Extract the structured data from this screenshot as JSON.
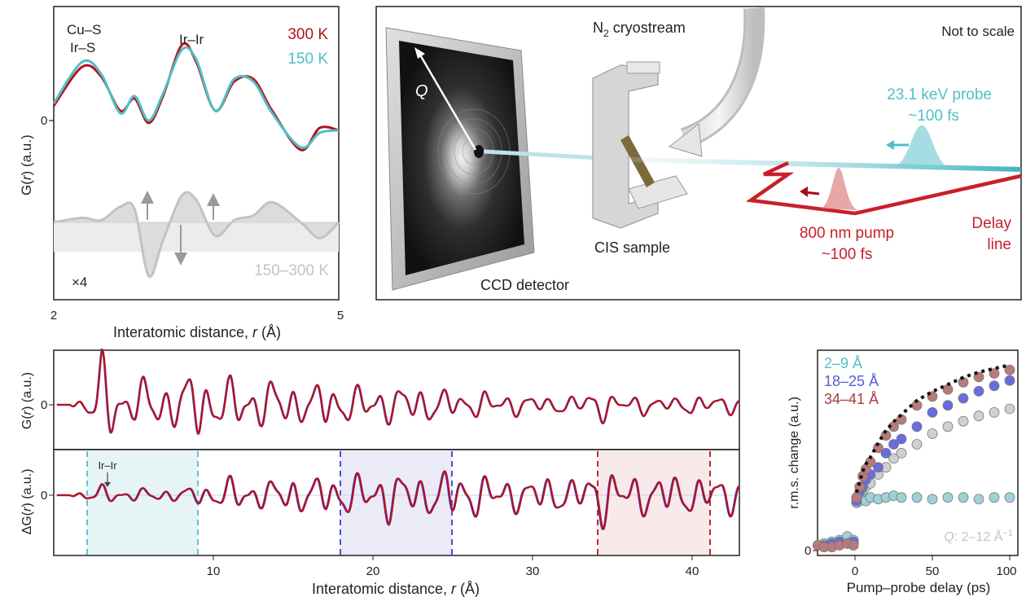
{
  "colors": {
    "red": "#b5121b",
    "cyan": "#4fbfc8",
    "blue": "#3a3ad8",
    "gray": "#b8b8b8",
    "lightgray": "#d3d3d3",
    "dark_red": "#a83a3a",
    "teal_fill": "#e6f4f5",
    "blue_fill": "#ebebf7",
    "red_fill": "#f8eaea",
    "pump_red": "#c8202a"
  },
  "panel_a": {
    "annotations": [
      "Cu–S",
      "Ir–S",
      "Ir–Ir",
      "×4",
      "150–300 K"
    ],
    "zero_tick": "0",
    "ylabel_pre": "G(",
    "ylabel_r": "r",
    "ylabel_post": ") (a.u.)",
    "xlabel_pre": "Interatomic distance, ",
    "xlabel_r": "r",
    "xlabel_post": " (Å)",
    "x_ticks": [
      "2",
      "5"
    ]
  },
  "panel_b": {
    "cryostream_pre": "N",
    "cryostream_sub": "2",
    "cryostream_post": " cryostream",
    "not_to_scale": "Not to scale",
    "probe_line1": "23.1 keV probe",
    "probe_line2": "~100 fs",
    "q_label": "Q",
    "ccd_label": "CCD detector",
    "sample_label": "CIS sample",
    "pump_line1": "800 nm pump",
    "pump_line2": "~100 fs",
    "delay_line1": "Delay",
    "delay_line2": "line"
  },
  "panel_c": {
    "ylabel_top_pre": "G(",
    "ylabel_top_r": "r",
    "ylabel_top_post": ") (a.u.)",
    "ylabel_bot_pre": "ΔG(",
    "ylabel_bot_r": "r",
    "ylabel_bot_post": ") (a.u.)",
    "zero_tick": "0",
    "annotation": "Ir–Ir",
    "xlabel_pre": "Interatomic distance, ",
    "xlabel_r": "r",
    "xlabel_post": " (Å)",
    "x_ticks": [
      "10",
      "20",
      "30",
      "40"
    ]
  },
  "panel_d": {
    "legend": [
      "2–9 Å",
      "18–25 Å",
      "34–41 Å"
    ],
    "q_pre": "Q",
    "q_post": ": 2–12 Å",
    "q_sup": "−1",
    "ylabel": "r.m.s. change (a.u.)",
    "xlabel": "Pump–probe delay (ps)",
    "x_ticks": [
      "0",
      "50",
      "100"
    ],
    "zero_tick": "0"
  },
  "chart_data": [
    {
      "type": "line",
      "series": [
        {
          "name": "300 K",
          "x": [
            2.0,
            2.3,
            2.5,
            2.7,
            2.85,
            3.0,
            3.15,
            3.35,
            3.5,
            3.7,
            3.9,
            4.1,
            4.3,
            4.6,
            4.8,
            5.0
          ],
          "y": [
            0.3,
            1.1,
            0.9,
            0.2,
            0.45,
            -0.05,
            0.5,
            1.55,
            1.2,
            0.2,
            0.8,
            0.85,
            0.2,
            -0.6,
            -0.15,
            -0.2
          ]
        },
        {
          "name": "150 K",
          "x": [
            2.0,
            2.3,
            2.5,
            2.7,
            2.85,
            3.0,
            3.15,
            3.35,
            3.5,
            3.7,
            3.9,
            4.1,
            4.3,
            4.6,
            4.8,
            5.0
          ],
          "y": [
            0.35,
            1.2,
            0.95,
            0.15,
            0.5,
            0.0,
            0.55,
            1.45,
            1.25,
            0.2,
            0.85,
            0.8,
            0.15,
            -0.55,
            -0.25,
            -0.2
          ]
        },
        {
          "name": "150–300 K",
          "x": [
            2.0,
            2.3,
            2.5,
            2.7,
            2.85,
            3.0,
            3.15,
            3.35,
            3.5,
            3.7,
            3.9,
            4.1,
            4.3,
            4.6,
            4.8,
            5.0
          ],
          "y": [
            0.0,
            0.1,
            0.05,
            0.35,
            0.3,
            -1.2,
            -0.4,
            0.6,
            0.5,
            -0.3,
            0.05,
            0.15,
            0.45,
            0.0,
            -0.35,
            0.0
          ]
        }
      ],
      "xlabel": "Interatomic distance, r (Å)",
      "ylabel": "G(r) (a.u.)",
      "xlim": [
        2,
        5
      ]
    },
    {
      "type": "line",
      "series": [
        {
          "name": "G(r)",
          "x": [
            1,
            2,
            3,
            4,
            5,
            6,
            7,
            8,
            9,
            10,
            11,
            12,
            13,
            14,
            15,
            16,
            17,
            18,
            19,
            20,
            21,
            22,
            23,
            24,
            25,
            26,
            27,
            28,
            29,
            30,
            31,
            32,
            33,
            34,
            35,
            36,
            37,
            38,
            39,
            40,
            41,
            42,
            43
          ],
          "y": [
            0,
            0.3,
            1.4,
            0.8,
            0.5,
            0.9,
            0.6,
            0.8,
            1.0,
            0.8,
            0.7,
            0.9,
            0.6,
            0.8,
            0.6,
            0.5,
            0.7,
            0.6,
            0.5,
            0.7,
            0.5,
            0.6,
            0.5,
            0.5,
            0.4,
            0.3,
            0.4,
            0.3,
            0.3,
            0.3,
            0.2,
            0.3,
            0.2,
            0.6,
            0.3,
            0.2,
            0.3,
            0.2,
            0.2,
            0.3,
            0.2,
            0.3,
            0.2
          ]
        },
        {
          "name": "ΔG(r)",
          "x": [
            1,
            2,
            3,
            4,
            5,
            6,
            7,
            8,
            9,
            10,
            11,
            12,
            13,
            14,
            15,
            16,
            17,
            18,
            19,
            20,
            21,
            22,
            23,
            24,
            25,
            26,
            27,
            28,
            29,
            30,
            31,
            32,
            33,
            34,
            35,
            36,
            37,
            38,
            39,
            40,
            41,
            42,
            43
          ],
          "y": [
            0,
            0.2,
            0.3,
            0.2,
            0.2,
            0.2,
            0.2,
            0.2,
            0.3,
            0.4,
            0.5,
            0.6,
            0.4,
            0.5,
            0.6,
            0.5,
            0.6,
            0.7,
            0.6,
            0.7,
            0.8,
            0.7,
            0.6,
            0.7,
            0.8,
            0.7,
            0.6,
            0.6,
            0.5,
            0.5,
            0.6,
            0.5,
            0.5,
            1.0,
            0.8,
            0.6,
            0.6,
            0.7,
            0.6,
            0.6,
            0.5,
            0.6,
            0.5
          ]
        }
      ],
      "regions": [
        [
          2,
          9
        ],
        [
          18,
          25
        ],
        [
          34,
          41
        ]
      ],
      "xlabel": "Interatomic distance, r (Å)",
      "ylabel": "G(r) (a.u.) / ΔG(r) (a.u.)",
      "xlim": [
        0,
        43
      ]
    },
    {
      "type": "scatter",
      "series": [
        {
          "name": "2–9 Å",
          "x": [
            -24,
            -20,
            -15,
            -10,
            -5,
            -1,
            1,
            3,
            5,
            7,
            10,
            15,
            20,
            25,
            30,
            40,
            50,
            60,
            70,
            80,
            90,
            100
          ],
          "y": [
            0.03,
            0.04,
            0.05,
            0.06,
            0.08,
            0.06,
            0.27,
            0.28,
            0.29,
            0.28,
            0.3,
            0.29,
            0.3,
            0.31,
            0.3,
            0.3,
            0.29,
            0.3,
            0.3,
            0.29,
            0.3,
            0.3
          ]
        },
        {
          "name": "18–25 Å",
          "x": [
            -24,
            -20,
            -15,
            -10,
            -5,
            -1,
            1,
            3,
            5,
            7,
            10,
            15,
            20,
            25,
            30,
            40,
            50,
            60,
            70,
            80,
            90,
            100
          ],
          "y": [
            0.03,
            0.03,
            0.04,
            0.05,
            0.04,
            0.05,
            0.28,
            0.33,
            0.36,
            0.4,
            0.43,
            0.47,
            0.55,
            0.6,
            0.63,
            0.7,
            0.78,
            0.82,
            0.86,
            0.9,
            0.93,
            0.96
          ]
        },
        {
          "name": "34–41 Å",
          "x": [
            -24,
            -20,
            -15,
            -10,
            -5,
            -1,
            1,
            3,
            5,
            7,
            10,
            15,
            20,
            25,
            30,
            40,
            50,
            60,
            70,
            80,
            90,
            100
          ],
          "y": [
            0.03,
            0.02,
            0.02,
            0.03,
            0.04,
            0.03,
            0.3,
            0.36,
            0.42,
            0.46,
            0.5,
            0.58,
            0.65,
            0.7,
            0.74,
            0.82,
            0.87,
            0.91,
            0.95,
            0.98,
            1.0,
            1.02
          ]
        },
        {
          "name": "Q: 2–12 Å−1",
          "x": [
            -24,
            -20,
            -15,
            -10,
            -5,
            -1,
            1,
            3,
            5,
            7,
            10,
            15,
            20,
            25,
            30,
            40,
            50,
            60,
            70,
            80,
            90,
            100
          ],
          "y": [
            0.03,
            0.03,
            0.04,
            0.05,
            0.05,
            0.04,
            0.28,
            0.31,
            0.34,
            0.36,
            0.38,
            0.43,
            0.47,
            0.52,
            0.55,
            0.6,
            0.66,
            0.7,
            0.73,
            0.76,
            0.78,
            0.8
          ]
        }
      ],
      "xlabel": "Pump–probe delay (ps)",
      "ylabel": "r.m.s. change (a.u.)",
      "xlim": [
        -25,
        105
      ]
    }
  ]
}
